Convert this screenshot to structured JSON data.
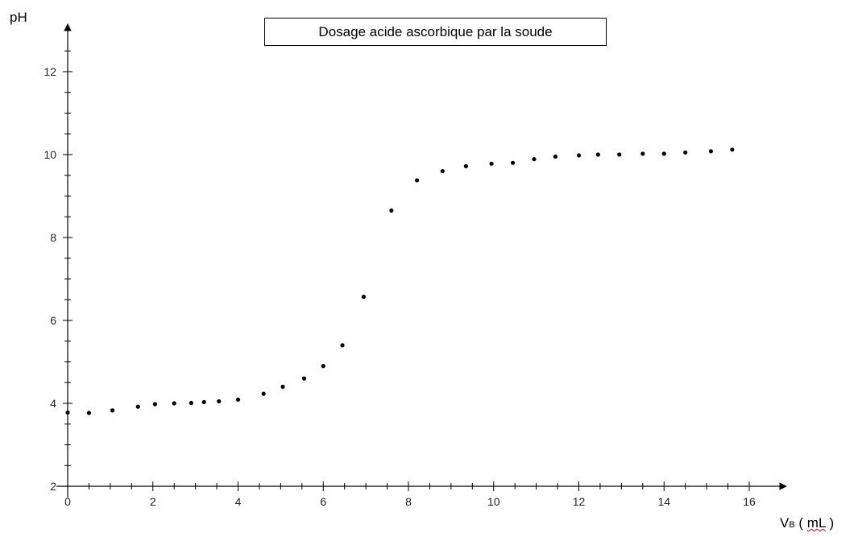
{
  "chart_data": {
    "type": "scatter",
    "title": "Dosage acide ascorbique par la soude",
    "ylabel": "pH",
    "xlabel": {
      "main": "V",
      "subscript": "B",
      "unit_open": " ( ",
      "unit": "mL",
      "unit_close": " )"
    },
    "xlim": [
      0,
      16
    ],
    "ylim": [
      2,
      13
    ],
    "xticks": [
      0,
      2,
      4,
      6,
      8,
      10,
      12,
      14,
      16
    ],
    "yticks": [
      2,
      4,
      6,
      8,
      10,
      12
    ],
    "grid": false,
    "point_color": "#000000",
    "series": [
      {
        "points": [
          [
            0,
            3.78
          ],
          [
            0.5,
            3.77
          ],
          [
            1.05,
            3.83
          ],
          [
            1.65,
            3.92
          ],
          [
            2.05,
            3.98
          ],
          [
            2.5,
            4.0
          ],
          [
            2.9,
            4.01
          ],
          [
            3.2,
            4.03
          ],
          [
            3.55,
            4.05
          ],
          [
            4.0,
            4.09
          ],
          [
            4.6,
            4.23
          ],
          [
            5.05,
            4.4
          ],
          [
            5.55,
            4.6
          ],
          [
            6.0,
            4.9
          ],
          [
            6.45,
            5.4
          ],
          [
            6.95,
            6.57
          ],
          [
            7.6,
            8.65
          ],
          [
            8.2,
            9.38
          ],
          [
            8.8,
            9.6
          ],
          [
            9.35,
            9.72
          ],
          [
            9.95,
            9.78
          ],
          [
            10.45,
            9.8
          ],
          [
            10.95,
            9.89
          ],
          [
            11.45,
            9.95
          ],
          [
            12.0,
            9.98
          ],
          [
            12.45,
            10.0
          ],
          [
            12.95,
            10.0
          ],
          [
            13.5,
            10.02
          ],
          [
            14.0,
            10.02
          ],
          [
            14.5,
            10.05
          ],
          [
            15.1,
            10.08
          ],
          [
            15.6,
            10.12
          ]
        ]
      }
    ]
  }
}
